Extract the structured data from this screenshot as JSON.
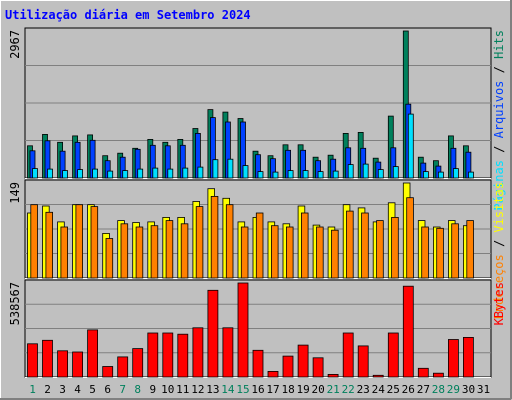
{
  "chart_data": {
    "type": "bar",
    "title": "Utilização diária em Setembro 2024",
    "days": [
      "1",
      "2",
      "3",
      "4",
      "5",
      "6",
      "7",
      "8",
      "9",
      "10",
      "11",
      "12",
      "13",
      "14",
      "15",
      "16",
      "17",
      "18",
      "19",
      "20",
      "21",
      "22",
      "23",
      "24",
      "25",
      "26",
      "27",
      "28",
      "29",
      "30",
      "31"
    ],
    "weekend_days": [
      1,
      7,
      8,
      14,
      15,
      21,
      22,
      28,
      29
    ],
    "panels": [
      {
        "max_label": "2967",
        "ylim": [
          0,
          2967
        ],
        "series": [
          {
            "name": "Hits",
            "color": "#00805c",
            "values": [
              650,
              880,
              720,
              850,
              870,
              450,
              500,
              600,
              780,
              720,
              780,
              1000,
              1380,
              1330,
              1200,
              540,
              450,
              670,
              670,
              420,
              460,
              900,
              920,
              400,
              1250,
              2967,
              420,
              350,
              850,
              650,
              null
            ]
          },
          {
            "name": "Arquivos",
            "color": "#0040ff",
            "values": [
              550,
              750,
              540,
              720,
              760,
              350,
              420,
              580,
              660,
              650,
              660,
              900,
              1220,
              1130,
              1130,
              470,
              390,
              560,
              560,
              350,
              380,
              610,
              600,
              320,
              610,
              1490,
              300,
              240,
              600,
              520,
              null
            ]
          },
          {
            "name": "Páginas",
            "color": "#00e0ff",
            "values": [
              190,
              180,
              150,
              170,
              180,
              140,
              150,
              180,
              200,
              180,
              200,
              220,
              370,
              380,
              250,
              130,
              120,
              150,
              150,
              130,
              140,
              270,
              280,
              170,
              230,
              1290,
              130,
              120,
              190,
              120,
              null
            ]
          }
        ],
        "legend": [
          {
            "text": "Hits",
            "color": "#00805c"
          },
          {
            "text": "Arquivos",
            "color": "#0040ff"
          },
          {
            "text": "Páginas",
            "color": "#00e0ff"
          }
        ]
      },
      {
        "max_label": "149",
        "ylim": [
          0,
          149
        ],
        "series": [
          {
            "name": "Visitas",
            "color": "#ffff00",
            "values": [
              102,
              113,
              88,
              115,
              115,
              70,
              90,
              87,
              88,
              95,
              95,
              120,
              140,
              125,
              88,
              95,
              88,
              85,
              113,
              83,
              80,
              115,
              110,
              88,
              118,
              149,
              90,
              80,
              90,
              82,
              null
            ]
          },
          {
            "name": "Endereços",
            "color": "#ff8000",
            "values": [
              115,
              103,
              80,
              115,
              112,
              62,
              85,
              80,
              82,
              90,
              85,
              112,
              128,
              115,
              80,
              102,
              82,
              80,
              102,
              80,
              75,
              105,
              102,
              90,
              95,
              126,
              80,
              78,
              85,
              90,
              null
            ]
          }
        ],
        "legend": [
          {
            "text": "Visitas",
            "color": "#ffff00"
          },
          {
            "text": "Endereços",
            "color": "#ff8000"
          }
        ]
      },
      {
        "max_label": "538567",
        "ylim": [
          0,
          538567
        ],
        "series": [
          {
            "name": "KBytes",
            "color": "#ff0000",
            "values": [
              190000,
              210000,
              150000,
              143000,
              270000,
              60000,
              115000,
              163000,
              252000,
              252000,
              245000,
              282000,
              497000,
              282000,
              538567,
              153000,
              32000,
              120000,
              183000,
              110000,
              15000,
              252000,
              178000,
              10000,
              252000,
              520000,
              50000,
              22000,
              215000,
              227000,
              null
            ]
          }
        ],
        "legend": [
          {
            "text": "KBytes",
            "color": "#ff0000"
          }
        ]
      }
    ]
  }
}
